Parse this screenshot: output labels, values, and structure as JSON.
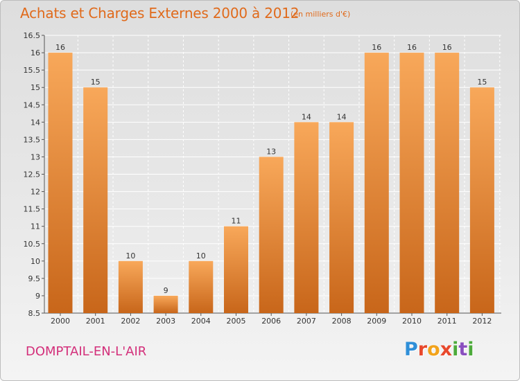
{
  "header": {
    "title": "Achats et Charges Externes 2000 à 2012",
    "unit": "(en milliers d'€)"
  },
  "footer": {
    "place": "DOMPTAIL-EN-L'AIR",
    "logo": [
      "P",
      "r",
      "o",
      "x",
      "i",
      "t",
      "i"
    ]
  },
  "colors": {
    "bar_top": "#f8a85a",
    "bar_bottom": "#c8661a",
    "title": "#e06a1b",
    "place": "#d32f7a"
  },
  "chart_data": {
    "type": "bar",
    "title": "Achats et Charges Externes 2000 à 2012",
    "xlabel": "",
    "ylabel": "",
    "categories": [
      "2000",
      "2001",
      "2002",
      "2003",
      "2004",
      "2005",
      "2006",
      "2007",
      "2008",
      "2009",
      "2010",
      "2011",
      "2012"
    ],
    "values": [
      16,
      15,
      10,
      9,
      10,
      11,
      13,
      14,
      14,
      16,
      16,
      16,
      15
    ],
    "ylim": [
      8.5,
      16.5
    ],
    "yticks": [
      "8.5",
      "9",
      "9.5",
      "10",
      "10.5",
      "11",
      "11.5",
      "12",
      "12.5",
      "13",
      "13.5",
      "14",
      "14.5",
      "15",
      "15.5",
      "16",
      "16.5"
    ],
    "grid": true
  }
}
